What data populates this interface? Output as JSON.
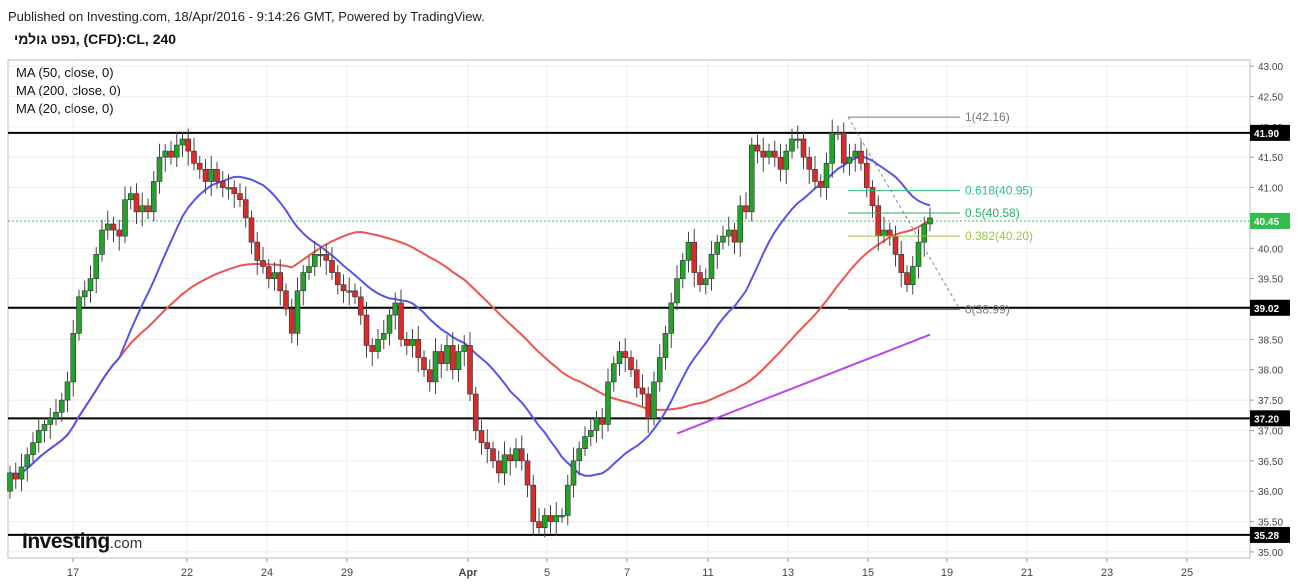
{
  "header": {
    "published": "Published on Investing.com, 18/Apr/2016 - 9:14:26 GMT, Powered by TradingView.",
    "symbol": "נפט גולמי, (CFD):CL, 240"
  },
  "legend": [
    "MA (50, close, 0)",
    "MA (200, close, 0)",
    "MA (20, close, 0)"
  ],
  "logo": {
    "brand": "Investing",
    "domain": ".com"
  },
  "chart_data": {
    "type": "candlestick",
    "x_ticks": [
      "17",
      "22",
      "24",
      "29",
      "Apr",
      "5",
      "7",
      "11",
      "13",
      "15",
      "19",
      "21",
      "23",
      "25"
    ],
    "y_ticks": [
      "43.00",
      "42.50",
      "42.00",
      "41.50",
      "41.00",
      "40.50",
      "40.00",
      "39.50",
      "39.00",
      "38.50",
      "38.00",
      "37.50",
      "37.00",
      "36.50",
      "36.00",
      "35.50",
      "35.00"
    ],
    "ylim": [
      34.9,
      43.1
    ],
    "horizontal_levels": [
      41.9,
      39.02,
      37.2,
      35.28
    ],
    "current_price": 40.45,
    "fibonacci": [
      {
        "label": "1(42.16)",
        "value": 42.16,
        "color": "#777777"
      },
      {
        "label": "0.618(40.95)",
        "value": 40.95,
        "color": "#2ec27e"
      },
      {
        "label": "0.5(40.58)",
        "value": 40.58,
        "color": "#27ae60"
      },
      {
        "label": "0.382(40.20)",
        "value": 40.2,
        "color": "#9bc53d"
      },
      {
        "label": "0(38.99)",
        "value": 38.99,
        "color": "#777777"
      }
    ],
    "closes": [
      36.3,
      36.2,
      36.4,
      36.6,
      36.8,
      37.0,
      37.1,
      37.2,
      37.3,
      37.5,
      37.8,
      38.6,
      39.2,
      39.3,
      39.5,
      39.9,
      40.3,
      40.4,
      40.3,
      40.2,
      40.8,
      40.9,
      40.6,
      40.7,
      40.6,
      41.1,
      41.5,
      41.6,
      41.5,
      41.7,
      41.8,
      41.6,
      41.4,
      41.3,
      41.1,
      41.3,
      41.1,
      41.0,
      41.0,
      40.9,
      40.8,
      40.5,
      40.1,
      39.8,
      39.7,
      39.5,
      39.6,
      39.3,
      39.0,
      38.6,
      39.3,
      39.6,
      39.7,
      39.9,
      39.9,
      39.8,
      39.6,
      39.4,
      39.3,
      39.3,
      39.2,
      38.9,
      38.4,
      38.3,
      38.5,
      38.6,
      38.9,
      39.1,
      38.5,
      38.4,
      38.5,
      38.2,
      38.0,
      37.8,
      38.3,
      38.1,
      38.4,
      38.0,
      38.3,
      38.4,
      37.6,
      37.0,
      36.8,
      36.7,
      36.5,
      36.3,
      36.6,
      36.5,
      36.7,
      36.5,
      36.1,
      35.5,
      35.4,
      35.6,
      35.5,
      35.6,
      35.6,
      36.1,
      36.5,
      36.7,
      36.9,
      37.0,
      37.2,
      37.1,
      37.8,
      38.1,
      38.3,
      38.2,
      38.0,
      37.7,
      37.6,
      37.2,
      37.8,
      38.2,
      38.6,
      39.1,
      39.5,
      39.8,
      40.1,
      39.6,
      39.4,
      39.5,
      39.9,
      40.1,
      40.2,
      40.3,
      40.1,
      40.7,
      40.6,
      41.7,
      41.6,
      41.5,
      41.6,
      41.5,
      41.3,
      41.6,
      41.8,
      41.8,
      41.5,
      41.3,
      41.1,
      41.0,
      41.4,
      41.9,
      41.9,
      41.4,
      41.5,
      41.6,
      41.4,
      41.0,
      40.7,
      40.2,
      40.3,
      40.2,
      39.9,
      39.6,
      39.4,
      39.7,
      40.1,
      40.4,
      40.5
    ]
  }
}
